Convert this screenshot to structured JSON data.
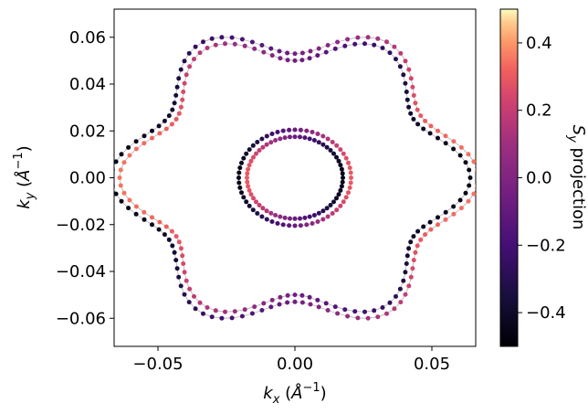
{
  "chart_data": {
    "type": "scatter",
    "title": "",
    "xlabel": "k_x  (Å^{-1})",
    "ylabel": "k_y  (Å^{-1})",
    "xlim": [
      -0.066,
      0.066
    ],
    "ylim": [
      -0.072,
      0.072
    ],
    "x_ticks": [
      {
        "value": -0.05,
        "label": "−0.05"
      },
      {
        "value": 0.0,
        "label": "0.00"
      },
      {
        "value": 0.05,
        "label": "0.05"
      }
    ],
    "y_ticks": [
      {
        "value": 0.06,
        "label": "0.06"
      },
      {
        "value": 0.04,
        "label": "0.04"
      },
      {
        "value": 0.02,
        "label": "0.02"
      },
      {
        "value": 0.0,
        "label": "0.00"
      },
      {
        "value": -0.02,
        "label": "−0.02"
      },
      {
        "value": -0.04,
        "label": "−0.04"
      },
      {
        "value": -0.06,
        "label": "−0.06"
      }
    ],
    "grid": false,
    "legend": "none",
    "colormap": "magma",
    "colorbar": {
      "label": "S_y projection",
      "range": [
        -0.5,
        0.5
      ],
      "ticks": [
        {
          "value": 0.4,
          "label": "0.4"
        },
        {
          "value": 0.2,
          "label": "0.2"
        },
        {
          "value": 0.0,
          "label": "0.0"
        },
        {
          "value": -0.2,
          "label": "−0.2"
        },
        {
          "value": -0.4,
          "label": "−0.4"
        }
      ]
    },
    "contours": [
      {
        "kind": "outer hexagonal",
        "center": [
          0.0,
          0.0
        ],
        "mean_radius": 0.06,
        "warp_amplitude": 0.007,
        "points": 120,
        "sy_min": -0.45,
        "sy_max": 0.35
      },
      {
        "kind": "outer hexagonal",
        "center": [
          0.0,
          0.0
        ],
        "mean_radius": 0.057,
        "warp_amplitude": 0.007,
        "points": 120,
        "sy_min": -0.45,
        "sy_max": 0.35
      },
      {
        "kind": "inner circle",
        "center": [
          0.0,
          0.0
        ],
        "mean_radius": 0.0205,
        "warp_amplitude": 0.0,
        "points": 60,
        "sy_min": -0.45,
        "sy_max": 0.3
      },
      {
        "kind": "inner circle",
        "center": [
          0.0,
          0.0
        ],
        "mean_radius": 0.0175,
        "warp_amplitude": 0.0,
        "points": 60,
        "sy_min": -0.45,
        "sy_max": 0.3
      }
    ]
  }
}
